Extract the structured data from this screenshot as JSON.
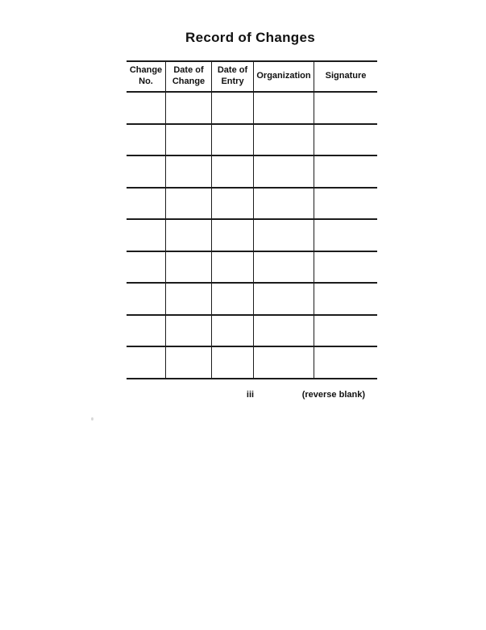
{
  "page": {
    "title": "Record of Changes",
    "page_number": "iii",
    "reverse_blank_note": "(reverse blank)"
  },
  "table": {
    "columns": [
      {
        "key": "change-no",
        "label": "Change\nNo."
      },
      {
        "key": "date-of-change",
        "label": "Date of\nChange"
      },
      {
        "key": "date-of-entry",
        "label": "Date of\nEntry"
      },
      {
        "key": "organization",
        "label": "Organization"
      },
      {
        "key": "signature",
        "label": "Signature"
      }
    ],
    "empty_row_count": 9
  }
}
